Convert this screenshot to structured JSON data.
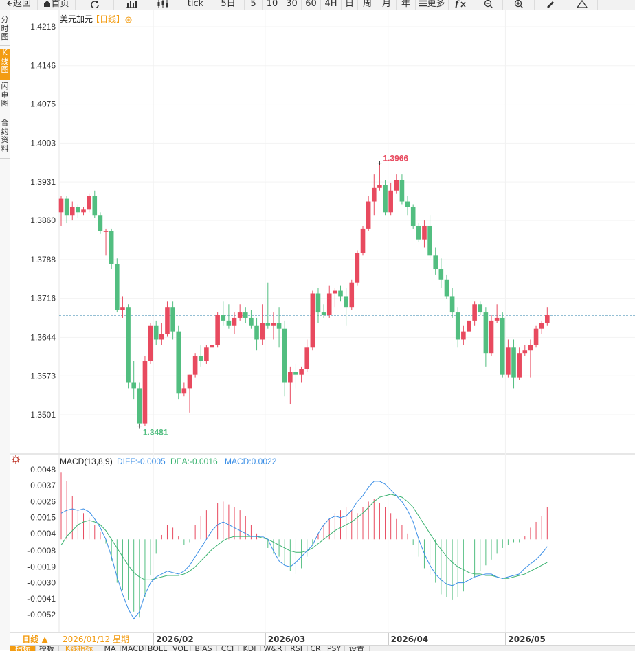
{
  "toolbar": {
    "items": [
      {
        "name": "back-button",
        "label": "返回",
        "icon": "arrow-left-icon"
      },
      {
        "name": "home-button",
        "label": "首页",
        "icon": "home-icon"
      },
      {
        "name": "refresh-button",
        "label": "",
        "icon": "refresh-icon"
      },
      {
        "name": "bar-style-button",
        "label": "",
        "icon": "bar-chart-icon"
      },
      {
        "name": "candle-style-button",
        "label": "",
        "icon": "candlestick-icon"
      },
      {
        "name": "tick-button",
        "label": "tick",
        "icon": ""
      },
      {
        "name": "period-5day-button",
        "label": "5日",
        "icon": ""
      },
      {
        "name": "period-5-button",
        "label": "5",
        "icon": ""
      },
      {
        "name": "period-10-button",
        "label": "10",
        "icon": ""
      },
      {
        "name": "period-30-button",
        "label": "30",
        "icon": ""
      },
      {
        "name": "period-60-button",
        "label": "60",
        "icon": ""
      },
      {
        "name": "period-4h-button",
        "label": "4H",
        "icon": ""
      },
      {
        "name": "period-day-button",
        "label": "日",
        "icon": ""
      },
      {
        "name": "period-week-button",
        "label": "周",
        "icon": ""
      },
      {
        "name": "period-month-button",
        "label": "月",
        "icon": ""
      },
      {
        "name": "period-year-button",
        "label": "年",
        "icon": ""
      },
      {
        "name": "more-button",
        "label": "更多",
        "icon": "menu-icon"
      },
      {
        "name": "formula-button",
        "label": "",
        "icon": "fx-icon"
      },
      {
        "name": "zoom-out-button",
        "label": "",
        "icon": "zoom-out-icon"
      },
      {
        "name": "zoom-in-button",
        "label": "",
        "icon": "zoom-in-icon"
      },
      {
        "name": "draw-button",
        "label": "",
        "icon": "pencil-icon"
      },
      {
        "name": "collapse-button",
        "label": "",
        "icon": "triangle-up-icon"
      }
    ]
  },
  "leftnav": [
    {
      "name": "nav-timeshare",
      "label": "分时图",
      "active": false
    },
    {
      "name": "nav-kline",
      "label": "K线图",
      "active": true
    },
    {
      "name": "nav-flash",
      "label": "闪电图",
      "active": false
    },
    {
      "name": "nav-contract",
      "label": "合约资料",
      "active": false
    }
  ],
  "main_chart": {
    "symbol": "美元加元",
    "period_tag": "【日线】",
    "up_color": "#e84a5f",
    "down_color": "#52be80",
    "current_price": 1.3685,
    "high_label": "1.3966",
    "low_label": "1.3481",
    "y_ticks": [
      "1.4218",
      "1.4146",
      "1.4075",
      "1.4003",
      "1.3931",
      "1.3860",
      "1.3788",
      "1.3716",
      "1.3644",
      "1.3573",
      "1.3501"
    ]
  },
  "macd": {
    "title": "MACD(13,8,9)",
    "diff_label": "DIFF:-0.0005",
    "dea_label": "DEA:-0.0016",
    "macd_label": "MACD:0.0022",
    "diff_color": "#3a8ee6",
    "dea_color": "#3cb371",
    "y_ticks": [
      "0.0048",
      "0.0037",
      "0.0026",
      "0.0015",
      "0.0004",
      "-0.0008",
      "-0.0019",
      "-0.0030",
      "-0.0041",
      "-0.0052"
    ]
  },
  "x_axis": {
    "period_button": "日线 ▲",
    "cursor_date": "2026/01/12 星期一",
    "month_labels": [
      {
        "label": "2026/02",
        "index": 17
      },
      {
        "label": "2026/03",
        "index": 37
      },
      {
        "label": "2026/04",
        "index": 59
      },
      {
        "label": "2026/05",
        "index": 80
      }
    ]
  },
  "bottom_tabs": [
    "指标",
    "模板",
    "K线指标",
    "MA",
    "MACD",
    "BOLL",
    "VOL",
    "BIAS",
    "CCI",
    "KDJ",
    "W&R",
    "RSI",
    "CR",
    "PSY",
    "设置"
  ],
  "chart_data": {
    "type": "candlestick",
    "ohlc": [
      [
        1.3875,
        1.3905,
        1.385,
        1.39
      ],
      [
        1.39,
        1.3905,
        1.3855,
        1.387
      ],
      [
        1.387,
        1.3895,
        1.386,
        1.3885
      ],
      [
        1.3885,
        1.389,
        1.3865,
        1.3875
      ],
      [
        1.3875,
        1.3885,
        1.387,
        1.388
      ],
      [
        1.388,
        1.391,
        1.3875,
        1.3905
      ],
      [
        1.3905,
        1.3915,
        1.3865,
        1.387
      ],
      [
        1.387,
        1.3875,
        1.3835,
        1.384
      ],
      [
        1.384,
        1.3845,
        1.3795,
        1.384
      ],
      [
        1.384,
        1.3845,
        1.377,
        1.378
      ],
      [
        1.378,
        1.379,
        1.369,
        1.3695
      ],
      [
        1.3695,
        1.372,
        1.368,
        1.37
      ],
      [
        1.37,
        1.3705,
        1.355,
        1.356
      ],
      [
        1.356,
        1.36,
        1.353,
        1.355
      ],
      [
        1.355,
        1.356,
        1.348,
        1.3485
      ],
      [
        1.3485,
        1.361,
        1.348,
        1.36
      ],
      [
        1.36,
        1.367,
        1.3595,
        1.3665
      ],
      [
        1.3665,
        1.3675,
        1.363,
        1.364
      ],
      [
        1.364,
        1.367,
        1.363,
        1.365
      ],
      [
        1.365,
        1.371,
        1.3645,
        1.37
      ],
      [
        1.37,
        1.371,
        1.364,
        1.3655
      ],
      [
        1.3655,
        1.3665,
        1.353,
        1.354
      ],
      [
        1.354,
        1.356,
        1.3535,
        1.355
      ],
      [
        1.355,
        1.3575,
        1.3505,
        1.3575
      ],
      [
        1.3575,
        1.3615,
        1.357,
        1.361
      ],
      [
        1.361,
        1.363,
        1.359,
        1.36
      ],
      [
        1.36,
        1.363,
        1.3595,
        1.3625
      ],
      [
        1.3625,
        1.365,
        1.362,
        1.363
      ],
      [
        1.363,
        1.369,
        1.3625,
        1.3685
      ],
      [
        1.3685,
        1.371,
        1.3665,
        1.3675
      ],
      [
        1.3675,
        1.3705,
        1.366,
        1.3665
      ],
      [
        1.3665,
        1.369,
        1.365,
        1.368
      ],
      [
        1.368,
        1.3705,
        1.3675,
        1.369
      ],
      [
        1.369,
        1.37,
        1.367,
        1.368
      ],
      [
        1.368,
        1.3695,
        1.366,
        1.3665
      ],
      [
        1.3665,
        1.368,
        1.362,
        1.364
      ],
      [
        1.364,
        1.3705,
        1.363,
        1.367
      ],
      [
        1.367,
        1.3745,
        1.366,
        1.3665
      ],
      [
        1.3665,
        1.369,
        1.364,
        1.367
      ],
      [
        1.367,
        1.37,
        1.3625,
        1.366
      ],
      [
        1.366,
        1.3675,
        1.3535,
        1.356
      ],
      [
        1.356,
        1.359,
        1.352,
        1.358
      ],
      [
        1.358,
        1.3595,
        1.355,
        1.3575
      ],
      [
        1.3575,
        1.359,
        1.356,
        1.3585
      ],
      [
        1.3585,
        1.364,
        1.358,
        1.3625
      ],
      [
        1.3625,
        1.373,
        1.362,
        1.3725
      ],
      [
        1.3725,
        1.3735,
        1.367,
        1.369
      ],
      [
        1.369,
        1.3705,
        1.368,
        1.3685
      ],
      [
        1.3685,
        1.374,
        1.368,
        1.3725
      ],
      [
        1.3725,
        1.3735,
        1.37,
        1.373
      ],
      [
        1.373,
        1.374,
        1.371,
        1.372
      ],
      [
        1.372,
        1.3735,
        1.3665,
        1.37
      ],
      [
        1.37,
        1.375,
        1.3695,
        1.3745
      ],
      [
        1.3745,
        1.3805,
        1.374,
        1.38
      ],
      [
        1.38,
        1.385,
        1.3795,
        1.3845
      ],
      [
        1.3845,
        1.3905,
        1.384,
        1.3895
      ],
      [
        1.3895,
        1.3945,
        1.387,
        1.392
      ],
      [
        1.392,
        1.3966,
        1.3915,
        1.3925
      ],
      [
        1.3925,
        1.3935,
        1.387,
        1.3875
      ],
      [
        1.3875,
        1.393,
        1.387,
        1.3915
      ],
      [
        1.3915,
        1.3945,
        1.391,
        1.3935
      ],
      [
        1.3935,
        1.3945,
        1.389,
        1.3895
      ],
      [
        1.3895,
        1.3905,
        1.387,
        1.3885
      ],
      [
        1.3885,
        1.389,
        1.3845,
        1.385
      ],
      [
        1.385,
        1.3855,
        1.382,
        1.3825
      ],
      [
        1.3825,
        1.386,
        1.381,
        1.385
      ],
      [
        1.385,
        1.387,
        1.379,
        1.3795
      ],
      [
        1.3795,
        1.381,
        1.376,
        1.377
      ],
      [
        1.377,
        1.379,
        1.3735,
        1.375
      ],
      [
        1.375,
        1.376,
        1.3715,
        1.372
      ],
      [
        1.372,
        1.3735,
        1.368,
        1.369
      ],
      [
        1.369,
        1.37,
        1.3625,
        1.364
      ],
      [
        1.364,
        1.3665,
        1.363,
        1.3655
      ],
      [
        1.3655,
        1.3685,
        1.3645,
        1.3675
      ],
      [
        1.3675,
        1.371,
        1.3665,
        1.3705
      ],
      [
        1.3705,
        1.371,
        1.3685,
        1.369
      ],
      [
        1.369,
        1.37,
        1.359,
        1.3615
      ],
      [
        1.3615,
        1.3685,
        1.361,
        1.3675
      ],
      [
        1.3675,
        1.3705,
        1.367,
        1.368
      ],
      [
        1.368,
        1.369,
        1.357,
        1.3575
      ],
      [
        1.3575,
        1.364,
        1.357,
        1.3625
      ],
      [
        1.3625,
        1.364,
        1.355,
        1.357
      ],
      [
        1.357,
        1.3625,
        1.3565,
        1.3615
      ],
      [
        1.3615,
        1.363,
        1.361,
        1.362
      ],
      [
        1.362,
        1.364,
        1.357,
        1.363
      ],
      [
        1.363,
        1.3665,
        1.3625,
        1.366
      ],
      [
        1.366,
        1.3675,
        1.365,
        1.367
      ],
      [
        1.367,
        1.37,
        1.3665,
        1.3685
      ]
    ],
    "macd_hist": [
      0.0046,
      0.004,
      0.003,
      0.002,
      0.0018,
      0.0015,
      0.001,
      0.0005,
      -0.0003,
      -0.0015,
      -0.003,
      -0.0035,
      -0.0042,
      -0.005,
      -0.0054,
      -0.004,
      -0.0025,
      -0.001,
      0.0003,
      0.001,
      0.0008,
      0.0002,
      -0.0004,
      -0.0002,
      0.001,
      0.0016,
      0.002,
      0.0024,
      0.0025,
      0.0026,
      0.0024,
      0.0022,
      0.002,
      0.0016,
      0.001,
      0.0004,
      0.0,
      -0.0006,
      -0.001,
      -0.0012,
      -0.0018,
      -0.0022,
      -0.0024,
      -0.002,
      -0.0012,
      -0.0004,
      0.0004,
      0.001,
      0.0014,
      0.0018,
      0.002,
      0.0022,
      0.002,
      0.0018,
      0.0022,
      0.0026,
      0.0028,
      0.0025,
      0.0022,
      0.0018,
      0.0014,
      0.001,
      0.0004,
      -0.0004,
      -0.0012,
      -0.002,
      -0.0025,
      -0.003,
      -0.0038,
      -0.004,
      -0.0042,
      -0.004,
      -0.0036,
      -0.003,
      -0.0026,
      -0.0022,
      -0.0018,
      -0.0014,
      -0.001,
      -0.0006,
      -0.0004,
      -0.0002,
      -0.0002,
      0.0002,
      0.0008,
      0.0012,
      0.0016,
      0.0022
    ],
    "diff": [
      0.0018,
      0.002,
      0.0021,
      0.002,
      0.0021,
      0.0019,
      0.0014,
      0.0008,
      0.0,
      -0.0012,
      -0.0026,
      -0.0038,
      -0.0048,
      -0.0055,
      -0.005,
      -0.0038,
      -0.003,
      -0.0026,
      -0.0024,
      -0.0022,
      -0.0023,
      -0.0024,
      -0.0022,
      -0.0018,
      -0.0012,
      -0.0006,
      0.0,
      0.0006,
      0.001,
      0.0012,
      0.001,
      0.0008,
      0.0006,
      0.0004,
      0.0002,
      0.0002,
      0.0002,
      0.0,
      -0.0008,
      -0.0015,
      -0.0018,
      -0.0019,
      -0.0016,
      -0.0012,
      -0.0008,
      -0.0004,
      0.0004,
      0.001,
      0.0014,
      0.0016,
      0.0015,
      0.0016,
      0.002,
      0.0026,
      0.003,
      0.0036,
      0.004,
      0.004,
      0.0038,
      0.0034,
      0.003,
      0.0026,
      0.002,
      0.0012,
      0.0,
      -0.001,
      -0.0018,
      -0.0024,
      -0.0028,
      -0.0031,
      -0.0032,
      -0.003,
      -0.003,
      -0.0028,
      -0.0026,
      -0.0025,
      -0.0024,
      -0.0024,
      -0.0026,
      -0.0027,
      -0.0026,
      -0.0025,
      -0.0024,
      -0.002,
      -0.0017,
      -0.0014,
      -0.001,
      -0.0005
    ],
    "dea": [
      -0.0004,
      0.0002,
      0.0006,
      0.001,
      0.0012,
      0.0013,
      0.0012,
      0.001,
      0.0006,
      0.0,
      -0.0006,
      -0.0012,
      -0.0018,
      -0.0023,
      -0.0026,
      -0.0028,
      -0.0028,
      -0.0027,
      -0.0026,
      -0.0025,
      -0.0025,
      -0.0025,
      -0.0024,
      -0.0022,
      -0.0019,
      -0.0015,
      -0.0011,
      -0.0007,
      -0.0004,
      -0.0001,
      0.0001,
      0.0002,
      0.0002,
      0.0002,
      0.0002,
      0.0002,
      0.0001,
      0.0,
      -0.0002,
      -0.0004,
      -0.0006,
      -0.0008,
      -0.0009,
      -0.0009,
      -0.0008,
      -0.0006,
      -0.0003,
      0.0,
      0.0003,
      0.0006,
      0.0008,
      0.001,
      0.0012,
      0.0015,
      0.0018,
      0.0022,
      0.0026,
      0.0029,
      0.003,
      0.0031,
      0.003,
      0.0029,
      0.0026,
      0.0022,
      0.0016,
      0.001,
      0.0004,
      -0.0002,
      -0.0007,
      -0.0012,
      -0.0016,
      -0.0019,
      -0.0021,
      -0.0023,
      -0.0024,
      -0.0024,
      -0.0025,
      -0.0025,
      -0.0026,
      -0.0027,
      -0.0027,
      -0.0026,
      -0.0025,
      -0.0024,
      -0.0022,
      -0.002,
      -0.0018,
      -0.0016
    ]
  }
}
